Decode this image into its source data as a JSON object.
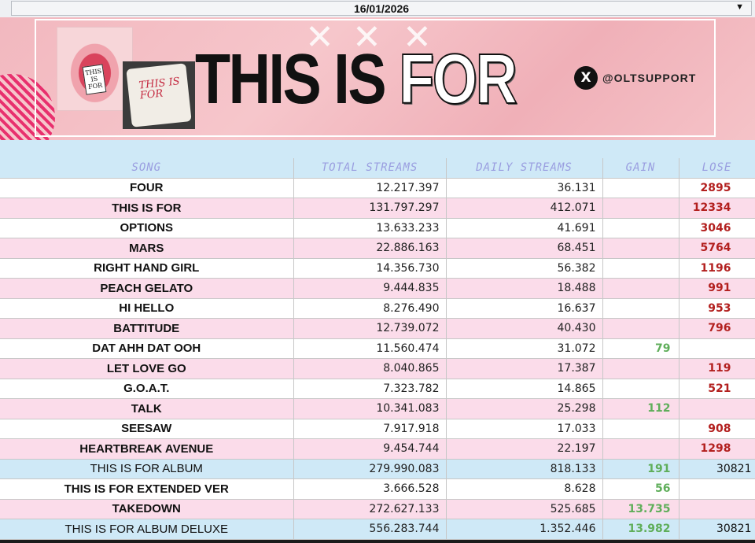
{
  "date": "16/01/2026",
  "banner": {
    "title_part1": "THIS IS",
    "title_part2": "FOR",
    "handle": "@OLTSUPPORT",
    "tag_text": "THIS IS FOR",
    "cake_text": "THIS IS FOR",
    "x_logo": "X"
  },
  "table": {
    "headers": [
      "SONG",
      "TOTAL STREAMS",
      "DAILY STREAMS",
      "GAIN",
      "LOSE"
    ],
    "rows": [
      {
        "song": "FOUR",
        "total": "12.217.397",
        "daily": "36.131",
        "gain": "",
        "lose": "2895",
        "style": "white"
      },
      {
        "song": "THIS IS FOR",
        "total": "131.797.297",
        "daily": "412.071",
        "gain": "",
        "lose": "12334",
        "style": "pink"
      },
      {
        "song": "OPTIONS",
        "total": "13.633.233",
        "daily": "41.691",
        "gain": "",
        "lose": "3046",
        "style": "white"
      },
      {
        "song": "MARS",
        "total": "22.886.163",
        "daily": "68.451",
        "gain": "",
        "lose": "5764",
        "style": "pink"
      },
      {
        "song": "RIGHT HAND GIRL",
        "total": "14.356.730",
        "daily": "56.382",
        "gain": "",
        "lose": "1196",
        "style": "white"
      },
      {
        "song": "PEACH GELATO",
        "total": "9.444.835",
        "daily": "18.488",
        "gain": "",
        "lose": "991",
        "style": "pink"
      },
      {
        "song": "HI HELLO",
        "total": "8.276.490",
        "daily": "16.637",
        "gain": "",
        "lose": "953",
        "style": "white"
      },
      {
        "song": "BATTITUDE",
        "total": "12.739.072",
        "daily": "40.430",
        "gain": "",
        "lose": "796",
        "style": "pink"
      },
      {
        "song": "DAT AHH DAT OOH",
        "total": "11.560.474",
        "daily": "31.072",
        "gain": "79",
        "lose": "",
        "style": "white"
      },
      {
        "song": "LET LOVE GO",
        "total": "8.040.865",
        "daily": "17.387",
        "gain": "",
        "lose": "119",
        "style": "pink"
      },
      {
        "song": "G.O.A.T.",
        "total": "7.323.782",
        "daily": "14.865",
        "gain": "",
        "lose": "521",
        "style": "white"
      },
      {
        "song": "TALK",
        "total": "10.341.083",
        "daily": "25.298",
        "gain": "112",
        "lose": "",
        "style": "pink"
      },
      {
        "song": "SEESAW",
        "total": "7.917.918",
        "daily": "17.033",
        "gain": "",
        "lose": "908",
        "style": "white"
      },
      {
        "song": "HEARTBREAK AVENUE",
        "total": "9.454.744",
        "daily": "22.197",
        "gain": "",
        "lose": "1298",
        "style": "pink"
      },
      {
        "song": "THIS IS FOR ALBUM",
        "total": "279.990.083",
        "daily": "818.133",
        "gain": "191",
        "lose": "30821",
        "style": "blue"
      },
      {
        "song": "THIS IS FOR EXTENDED VER",
        "total": "3.666.528",
        "daily": "8.628",
        "gain": "56",
        "lose": "",
        "style": "white"
      },
      {
        "song": "TAKEDOWN",
        "total": "272.627.133",
        "daily": "525.685",
        "gain": "13.735",
        "lose": "",
        "style": "pink"
      },
      {
        "song": "THIS IS FOR ALBUM DELUXE",
        "total": "556.283.744",
        "daily": "1.352.446",
        "gain": "13.982",
        "lose": "30821",
        "style": "blue"
      }
    ]
  },
  "colors": {
    "header_bg": "#cfe9f7",
    "header_text": "#9a9ee0",
    "pink_row": "#fbdcea",
    "gain": "#5fae5a",
    "lose": "#b3201f"
  }
}
